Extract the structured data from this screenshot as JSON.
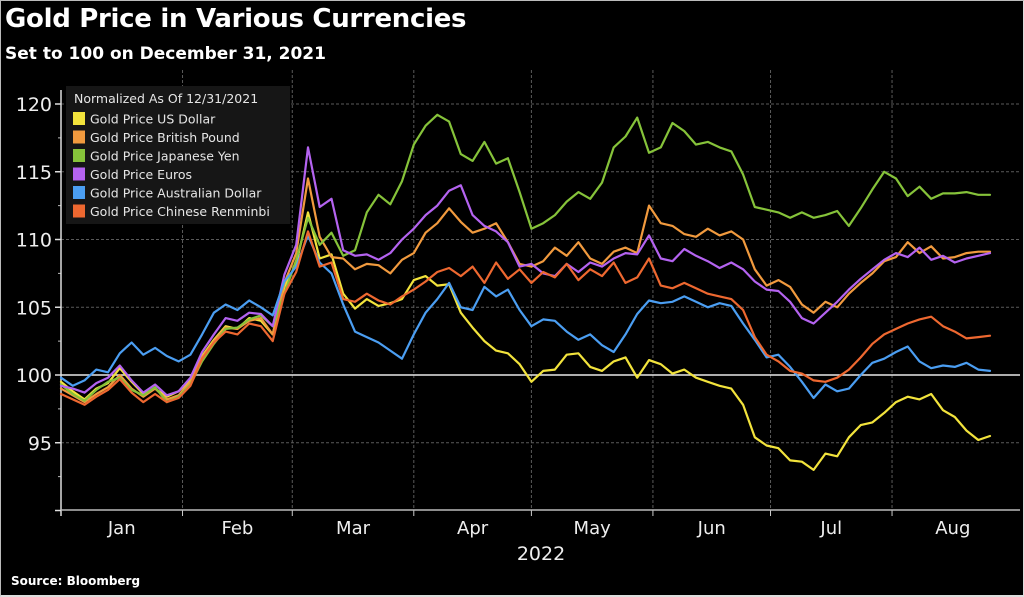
{
  "title": "Gold Price in Various Currencies",
  "subtitle": "Set to 100 on December 31, 2021",
  "source": "Source: Bloomberg",
  "chart_data": {
    "type": "line",
    "title": "Gold Price in Various Currencies",
    "subtitle": "Set to 100 on December 31, 2021",
    "xlabel": "2022",
    "ylabel": "",
    "ylim": [
      90,
      121.5
    ],
    "yticks": [
      95,
      100,
      105,
      110,
      115,
      120
    ],
    "ytick_labels": [
      "95",
      "100",
      "105",
      "110",
      "115",
      "120"
    ],
    "xlim_days": [
      0,
      244
    ],
    "month_labels": [
      "Jan",
      "Feb",
      "Mar",
      "Apr",
      "May",
      "Jun",
      "Jul",
      "Aug"
    ],
    "month_start_days": [
      0,
      31,
      59,
      90,
      120,
      151,
      181,
      212
    ],
    "reference_line": 100,
    "grid": true,
    "legend": {
      "title": "Normalized As Of 12/31/2021",
      "position": "top-left"
    },
    "x_days": [
      0,
      3,
      6,
      9,
      12,
      15,
      18,
      21,
      24,
      27,
      30,
      33,
      36,
      39,
      42,
      45,
      48,
      51,
      54,
      57,
      60,
      63,
      66,
      69,
      72,
      75,
      78,
      81,
      84,
      87,
      90,
      93,
      96,
      99,
      102,
      105,
      108,
      111,
      114,
      117,
      120,
      123,
      126,
      129,
      132,
      135,
      138,
      141,
      144,
      147,
      150,
      153,
      156,
      159,
      162,
      165,
      168,
      171,
      174,
      177,
      180,
      183,
      186,
      189,
      192,
      195,
      198,
      201,
      204,
      207,
      210,
      213,
      216,
      219,
      222,
      225,
      228,
      231,
      234,
      237
    ],
    "series": [
      {
        "name": "Gold Price US Dollar",
        "color": "#f2e33c",
        "values": [
          99.5,
          98.8,
          98.2,
          99.0,
          99.4,
          100.5,
          99.5,
          98.6,
          99.0,
          98.4,
          98.8,
          99.6,
          101.4,
          102.6,
          103.6,
          103.4,
          104.2,
          104.0,
          103.0,
          106.5,
          108.2,
          112.0,
          108.6,
          108.9,
          106.0,
          104.9,
          105.6,
          105.1,
          105.3,
          105.6,
          107.0,
          107.3,
          106.6,
          106.7,
          104.6,
          103.5,
          102.5,
          101.8,
          101.6,
          100.8,
          99.5,
          100.3,
          100.4,
          101.5,
          101.6,
          100.6,
          100.3,
          101.0,
          101.3,
          99.8,
          101.1,
          100.8,
          100.1,
          100.4,
          99.8,
          99.5,
          99.2,
          99.0,
          97.8,
          95.4,
          94.8,
          94.6,
          93.7,
          93.6,
          93.0,
          94.2,
          94.0,
          95.4,
          96.3,
          96.5,
          97.2,
          98.0,
          98.4,
          98.2,
          98.6,
          97.4,
          96.9,
          95.9,
          95.2,
          95.5
        ]
      },
      {
        "name": "Gold Price British Pound",
        "color": "#f19a3e",
        "values": [
          99.0,
          98.5,
          98.0,
          98.6,
          99.1,
          100.0,
          99.0,
          98.4,
          99.0,
          98.2,
          98.5,
          99.5,
          101.3,
          102.5,
          103.5,
          103.4,
          104.0,
          104.2,
          103.0,
          106.8,
          109.0,
          114.5,
          110.2,
          108.7,
          108.6,
          107.8,
          108.2,
          108.1,
          107.5,
          108.5,
          109.0,
          110.5,
          111.2,
          112.3,
          111.3,
          110.5,
          110.8,
          111.2,
          109.8,
          108.2,
          108.0,
          108.4,
          109.4,
          108.8,
          109.8,
          108.6,
          108.2,
          109.1,
          109.4,
          109.0,
          112.5,
          111.2,
          111.0,
          110.4,
          110.2,
          110.8,
          110.3,
          110.6,
          110.0,
          107.8,
          106.6,
          107.0,
          106.5,
          105.2,
          104.6,
          105.4,
          105.0,
          106.0,
          106.8,
          107.5,
          108.4,
          108.7,
          109.8,
          109.0,
          109.5,
          108.6,
          108.7,
          109.0,
          109.1,
          109.1
        ]
      },
      {
        "name": "Gold Price Japanese Yen",
        "color": "#86c33a",
        "values": [
          99.3,
          98.6,
          98.1,
          98.9,
          99.5,
          99.8,
          98.9,
          98.5,
          99.1,
          98.0,
          98.4,
          99.3,
          101.0,
          102.3,
          103.4,
          103.5,
          104.1,
          104.4,
          103.6,
          106.0,
          108.5,
          111.6,
          109.6,
          110.5,
          108.8,
          109.2,
          112.0,
          113.3,
          112.6,
          114.3,
          117.0,
          118.4,
          119.2,
          118.7,
          116.3,
          115.8,
          117.2,
          115.6,
          116.0,
          113.5,
          110.8,
          111.2,
          111.8,
          112.8,
          113.5,
          113.0,
          114.2,
          116.8,
          117.6,
          119.0,
          116.4,
          116.8,
          118.6,
          118.0,
          117.0,
          117.2,
          116.8,
          116.5,
          114.8,
          112.4,
          112.2,
          112.0,
          111.6,
          112.0,
          111.6,
          111.8,
          112.1,
          111.0,
          112.3,
          113.7,
          115.0,
          114.5,
          113.2,
          113.9,
          113.0,
          113.4,
          113.4,
          113.5,
          113.3,
          113.3
        ]
      },
      {
        "name": "Gold Price Euros",
        "color": "#b463f0",
        "values": [
          99.2,
          99.0,
          98.7,
          99.4,
          99.8,
          100.7,
          99.6,
          98.7,
          99.3,
          98.5,
          98.8,
          99.8,
          101.7,
          103.0,
          104.2,
          104.0,
          104.6,
          104.5,
          103.6,
          107.4,
          109.6,
          116.8,
          112.4,
          113.0,
          109.2,
          108.8,
          108.9,
          108.5,
          109.0,
          110.0,
          110.8,
          111.8,
          112.5,
          113.6,
          114.0,
          111.8,
          111.0,
          110.6,
          109.8,
          108.0,
          108.2,
          107.5,
          107.3,
          108.2,
          107.6,
          108.3,
          108.0,
          108.6,
          109.0,
          108.9,
          110.3,
          108.6,
          108.4,
          109.3,
          108.8,
          108.4,
          107.9,
          108.3,
          107.8,
          106.9,
          106.3,
          106.2,
          105.4,
          104.2,
          103.8,
          104.6,
          105.4,
          106.3,
          107.1,
          107.8,
          108.5,
          109.0,
          108.7,
          109.4,
          108.5,
          108.8,
          108.3,
          108.6,
          108.8,
          109.0
        ]
      },
      {
        "name": "Gold Price Australian Dollar",
        "color": "#4b9ef2",
        "values": [
          99.8,
          99.2,
          99.6,
          100.4,
          100.2,
          101.6,
          102.4,
          101.5,
          102.0,
          101.4,
          101.0,
          101.5,
          103.0,
          104.6,
          105.2,
          104.8,
          105.5,
          105.0,
          104.4,
          106.9,
          108.0,
          110.3,
          108.3,
          107.5,
          105.2,
          103.2,
          102.8,
          102.4,
          101.8,
          101.2,
          103.0,
          104.6,
          105.6,
          106.8,
          105.0,
          104.8,
          106.5,
          105.8,
          106.3,
          104.8,
          103.6,
          104.1,
          104.0,
          103.2,
          102.6,
          103.0,
          102.2,
          101.7,
          103.0,
          104.5,
          105.5,
          105.3,
          105.4,
          105.8,
          105.4,
          105.0,
          105.3,
          105.1,
          103.8,
          102.6,
          101.3,
          101.5,
          100.6,
          99.5,
          98.3,
          99.3,
          98.8,
          99.0,
          100.0,
          100.9,
          101.2,
          101.7,
          102.1,
          101.0,
          100.5,
          100.7,
          100.6,
          100.9,
          100.4,
          100.3
        ]
      },
      {
        "name": "Gold Price Chinese Renminbi",
        "color": "#ee6830",
        "values": [
          98.6,
          98.2,
          97.8,
          98.4,
          98.9,
          99.7,
          98.7,
          98.0,
          98.6,
          98.0,
          98.3,
          99.2,
          101.2,
          102.4,
          103.2,
          103.0,
          103.8,
          103.6,
          102.5,
          106.0,
          107.6,
          110.6,
          108.0,
          108.3,
          105.6,
          105.4,
          106.0,
          105.5,
          105.2,
          105.8,
          106.3,
          106.9,
          107.6,
          107.9,
          107.3,
          108.0,
          106.8,
          108.3,
          107.1,
          107.8,
          106.8,
          107.6,
          107.2,
          108.2,
          107.0,
          107.8,
          107.3,
          108.3,
          106.8,
          107.2,
          108.6,
          106.6,
          106.4,
          106.8,
          106.4,
          106.0,
          105.8,
          105.6,
          104.8,
          102.8,
          101.5,
          101.0,
          100.3,
          100.1,
          99.6,
          99.5,
          99.8,
          100.4,
          101.3,
          102.3,
          103.0,
          103.4,
          103.8,
          104.1,
          104.3,
          103.6,
          103.2,
          102.7,
          102.8,
          102.9
        ]
      }
    ]
  }
}
